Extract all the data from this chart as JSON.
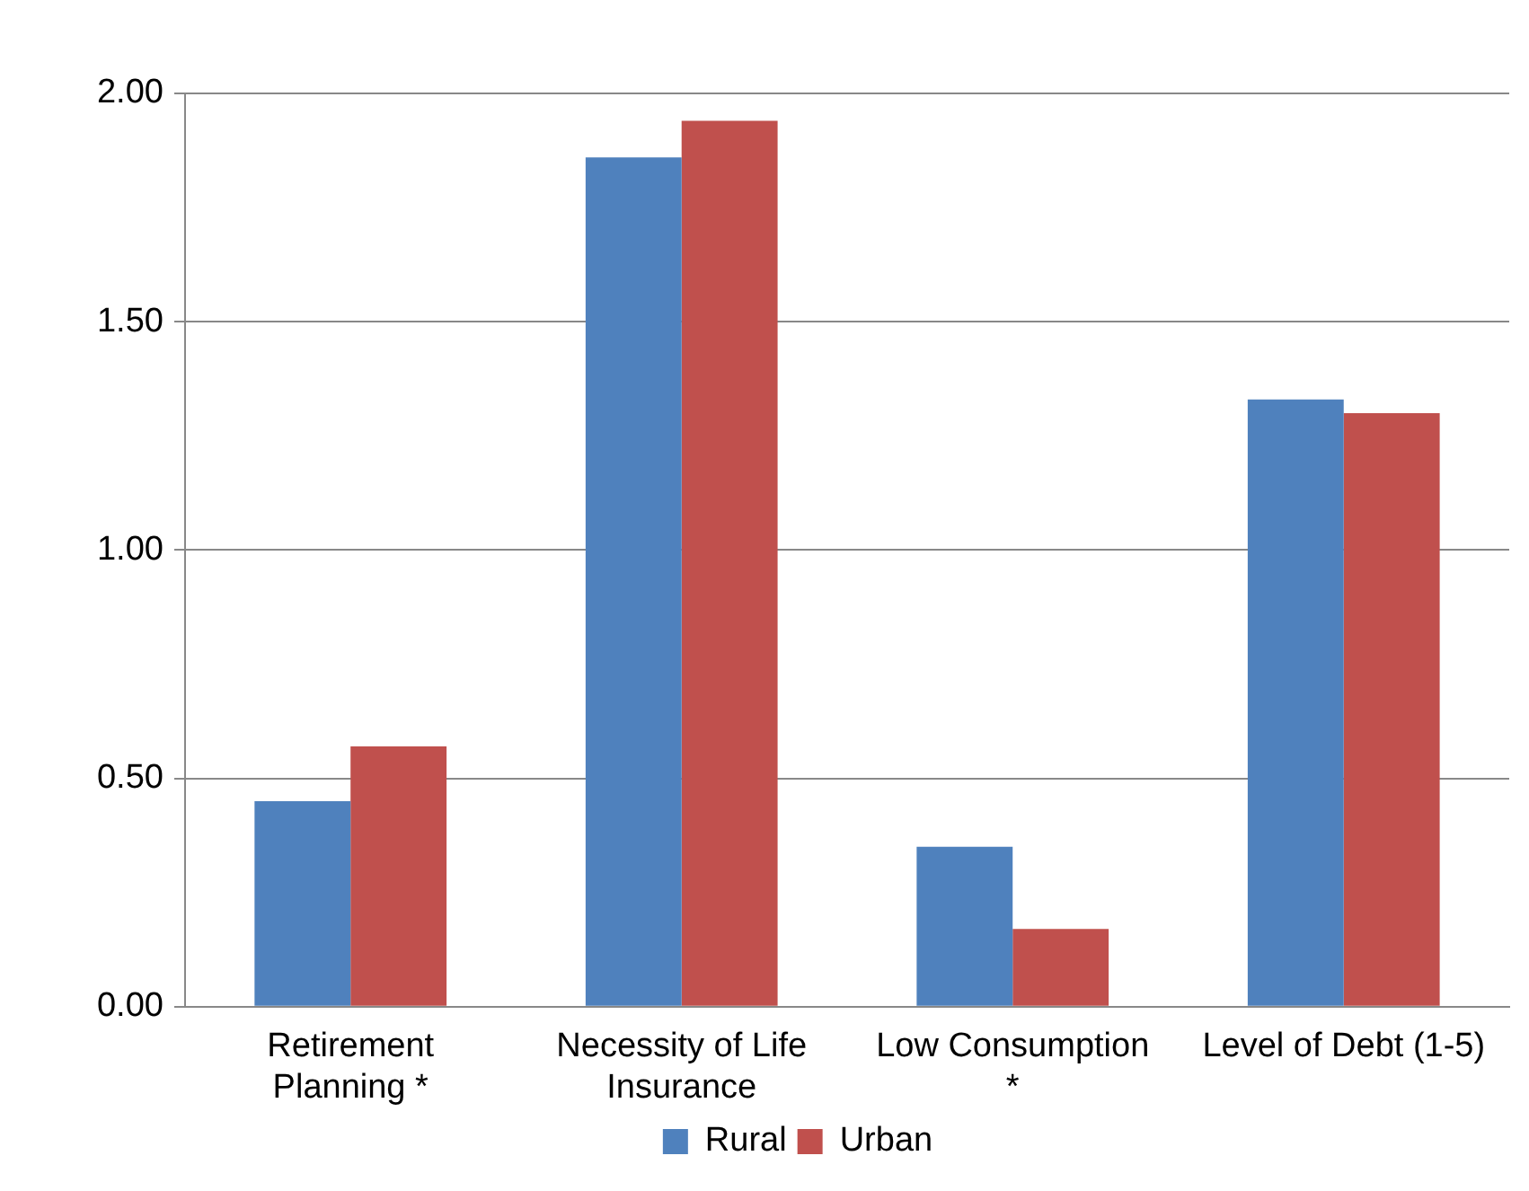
{
  "chart_data": {
    "type": "bar",
    "categories": [
      "Retirement\nPlanning *",
      "Necessity of Life\nInsurance",
      "Low Consumption\n*",
      "Level of Debt (1-5)"
    ],
    "series": [
      {
        "name": "Rural",
        "color": "#4f81bd",
        "values": [
          0.45,
          1.86,
          0.35,
          1.33
        ]
      },
      {
        "name": "Urban",
        "color": "#c0504d",
        "values": [
          0.57,
          1.94,
          0.17,
          1.3
        ]
      }
    ],
    "ylim": [
      0,
      2
    ],
    "yticks": [
      {
        "value": 0,
        "label": "0.00"
      },
      {
        "value": 0.5,
        "label": "0.50"
      },
      {
        "value": 1,
        "label": "1.00"
      },
      {
        "value": 1.5,
        "label": "1.50"
      },
      {
        "value": 2,
        "label": "2.00"
      }
    ],
    "grid": "y",
    "legend": "bottom"
  }
}
